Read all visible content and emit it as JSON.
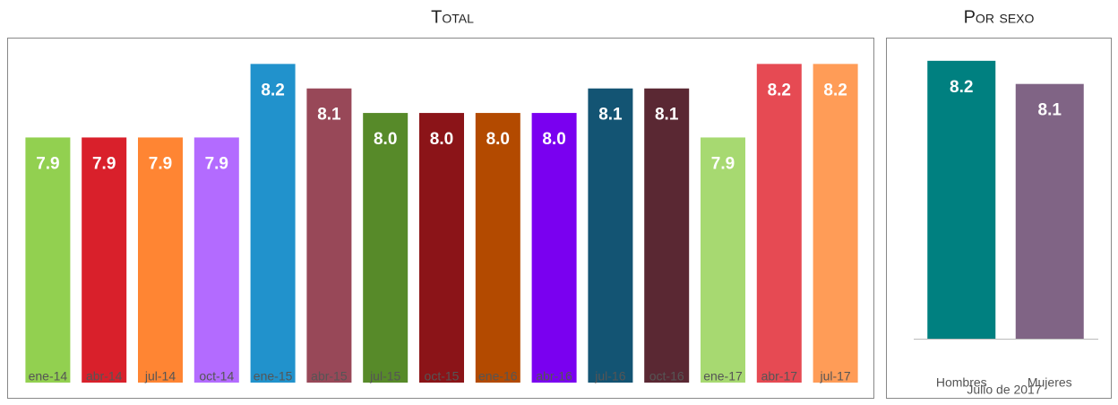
{
  "chart_data": [
    {
      "type": "bar",
      "title": "Total",
      "categories": [
        "ene-14",
        "abr-14",
        "jul-14",
        "oct-14",
        "ene-15",
        "abr-15",
        "jul-15",
        "oct-15",
        "ene-16",
        "abr-16",
        "jul-16",
        "oct-16",
        "ene-17",
        "abr-17",
        "jul-17"
      ],
      "values": [
        7.9,
        7.9,
        7.9,
        7.9,
        8.2,
        8.1,
        8.0,
        8.0,
        8.0,
        8.0,
        8.1,
        8.1,
        7.9,
        8.2,
        8.2
      ],
      "value_labels": [
        "7.9",
        "7.9",
        "7.9",
        "7.9",
        "8.2",
        "8.1",
        "8.0",
        "8.0",
        "8.0",
        "8.0",
        "8.1",
        "8.1",
        "7.9",
        "8.2",
        "8.2"
      ],
      "colors": [
        "#92d050",
        "#d9202b",
        "#ff8533",
        "#b36bff",
        "#2192cc",
        "#984858",
        "#578a29",
        "#8b1418",
        "#b34a00",
        "#7a00f0",
        "#135473",
        "#5a2833",
        "#a7d971",
        "#e64a53",
        "#ff9c57"
      ],
      "ylim": [
        6.9,
        8.3
      ]
    },
    {
      "type": "bar",
      "title": "Por sexo",
      "xlabel": "Julio de 2017",
      "categories": [
        "Hombres",
        "Mujeres"
      ],
      "values": [
        8.2,
        8.1
      ],
      "value_labels": [
        "8.2",
        "8.1"
      ],
      "colors": [
        "#008080",
        "#806485"
      ],
      "ylim": [
        7.0,
        8.3
      ]
    }
  ]
}
